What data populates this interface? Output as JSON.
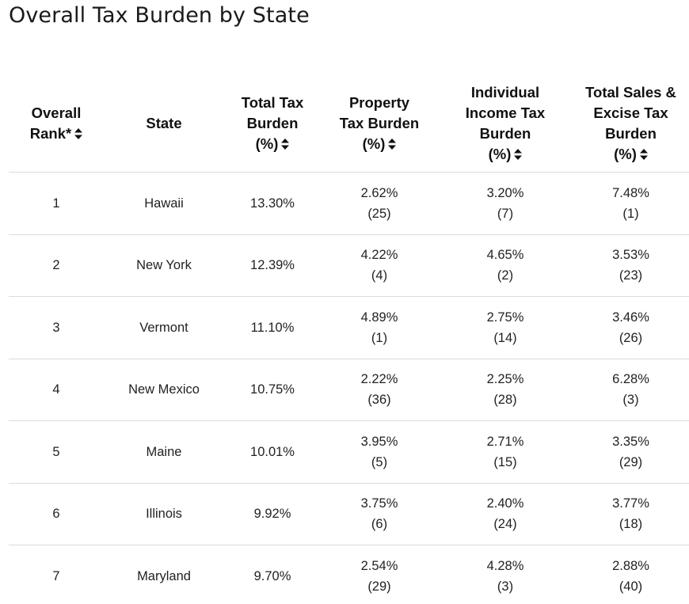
{
  "page": {
    "title": "Overall Tax Burden by State"
  },
  "table": {
    "headers": [
      {
        "lines": [
          "Overall",
          "Rank*"
        ]
      },
      {
        "lines": [
          "State"
        ]
      },
      {
        "lines": [
          "Total Tax",
          "Burden",
          "(%)"
        ]
      },
      {
        "lines": [
          "Property",
          "Tax Burden",
          "(%)"
        ]
      },
      {
        "lines": [
          "Individual",
          "Income Tax",
          "Burden",
          "(%)"
        ]
      },
      {
        "lines": [
          "Total Sales &",
          "Excise Tax",
          "Burden",
          "(%)"
        ]
      }
    ],
    "rows": [
      {
        "rank": "1",
        "state": "Hawaii",
        "total": "13.30%",
        "property_pct": "2.62%",
        "property_rank": "(25)",
        "income_pct": "3.20%",
        "income_rank": "(7)",
        "sales_pct": "7.48%",
        "sales_rank": "(1)"
      },
      {
        "rank": "2",
        "state": "New York",
        "total": "12.39%",
        "property_pct": "4.22%",
        "property_rank": "(4)",
        "income_pct": "4.65%",
        "income_rank": "(2)",
        "sales_pct": "3.53%",
        "sales_rank": "(23)"
      },
      {
        "rank": "3",
        "state": "Vermont",
        "total": "11.10%",
        "property_pct": "4.89%",
        "property_rank": "(1)",
        "income_pct": "2.75%",
        "income_rank": "(14)",
        "sales_pct": "3.46%",
        "sales_rank": "(26)"
      },
      {
        "rank": "4",
        "state": "New Mexico",
        "total": "10.75%",
        "property_pct": "2.22%",
        "property_rank": "(36)",
        "income_pct": "2.25%",
        "income_rank": "(28)",
        "sales_pct": "6.28%",
        "sales_rank": "(3)"
      },
      {
        "rank": "5",
        "state": "Maine",
        "total": "10.01%",
        "property_pct": "3.95%",
        "property_rank": "(5)",
        "income_pct": "2.71%",
        "income_rank": "(15)",
        "sales_pct": "3.35%",
        "sales_rank": "(29)"
      },
      {
        "rank": "6",
        "state": "Illinois",
        "total": "9.92%",
        "property_pct": "3.75%",
        "property_rank": "(6)",
        "income_pct": "2.40%",
        "income_rank": "(24)",
        "sales_pct": "3.77%",
        "sales_rank": "(18)"
      },
      {
        "rank": "7",
        "state": "Maryland",
        "total": "9.70%",
        "property_pct": "2.54%",
        "property_rank": "(29)",
        "income_pct": "4.28%",
        "income_rank": "(3)",
        "sales_pct": "2.88%",
        "sales_rank": "(40)"
      }
    ]
  },
  "icons": {
    "sort": "sort-icon"
  },
  "colors": {
    "text": "#111111",
    "divider": "#dcdcdc",
    "background": "#ffffff"
  }
}
